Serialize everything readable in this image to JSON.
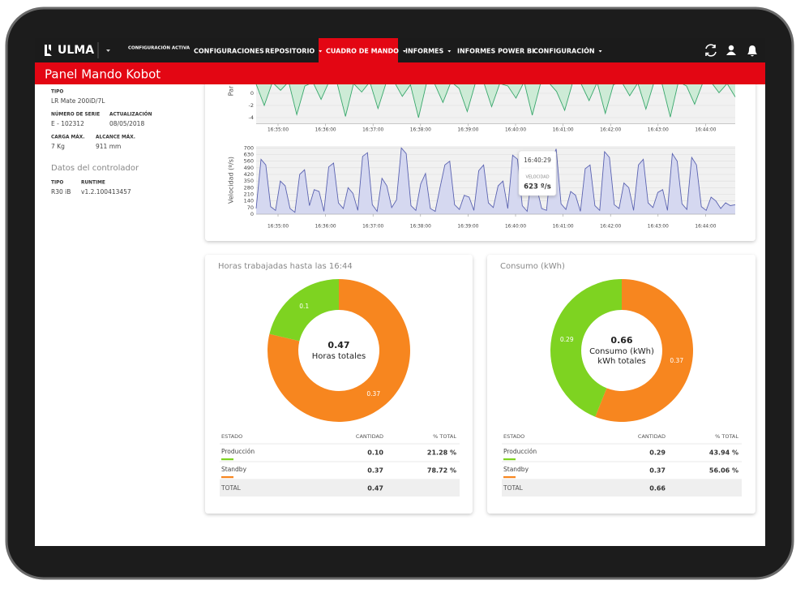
{
  "nav": {
    "logo": "ULMA",
    "active_config_label": "CONFIGURACIÓN ACTIVA",
    "items": [
      "CONFIGURACIONES",
      "REPOSITORIO",
      "CUADRO DE MANDO",
      "INFORMES",
      "INFORMES POWER BI",
      "CONFIGURACIÓN"
    ]
  },
  "header": {
    "title": "Panel Mando Kobot"
  },
  "robot": {
    "fields": [
      {
        "label": "TIPO",
        "value": "LR Mate 200iD/7L"
      },
      {
        "label": "NÚMERO DE SERIE",
        "value": "E - 102312"
      },
      {
        "label": "ACTUALIZACIÓN",
        "value": "08/05/2018"
      },
      {
        "label": "CARGA MÁX.",
        "value": "7 Kg"
      },
      {
        "label": "ALCANCE MÁX.",
        "value": "911 mm"
      }
    ]
  },
  "controller": {
    "title": "Datos del controlador",
    "fields": [
      {
        "label": "TIPO",
        "value": "R30 iB"
      },
      {
        "label": "RUNTIME",
        "value": "v1.2.100413457"
      }
    ]
  },
  "torque_chart": {
    "type": "line",
    "y_label": "Par",
    "ylim": [
      -5,
      3
    ],
    "yticks": [
      -4,
      -2,
      0
    ],
    "x_labels": [
      "16:35:00",
      "16:36:00",
      "16:37:00",
      "16:38:00",
      "16:39:00",
      "16:40:00",
      "16:41:00",
      "16:42:00",
      "16:43:00",
      "16:44:00"
    ],
    "color": "#3aa76d",
    "fill": "#cdebd6",
    "values": [
      1.5,
      -2,
      1.8,
      0.5,
      1.9,
      -3.5,
      1.2,
      1.8,
      -1,
      2,
      1.5,
      -3.8,
      1.6,
      0.2,
      1.9,
      -2.5,
      1.7,
      1.9,
      -0.5,
      1.4,
      -4,
      1.8,
      1.5,
      -1.5,
      1.9,
      0.8,
      -3,
      1.7,
      1.9,
      -2.2,
      1.6,
      1.2,
      -0.8,
      1.9,
      -3.6,
      1.5,
      1.8,
      0.3,
      -2.8,
      1.9,
      1.6,
      -1.2,
      1.8,
      -3.3,
      1.4,
      1.9,
      -0.4,
      1.7,
      -2.6,
      1.8,
      1.5,
      -3.9,
      1.9,
      1.2,
      -1.8,
      1.7,
      1.9,
      0.1,
      1.6,
      -0.6
    ]
  },
  "speed_chart": {
    "type": "line",
    "y_label": "Velocidad (º/s)",
    "ylim": [
      0,
      720
    ],
    "yticks": [
      0,
      70,
      140,
      210,
      280,
      350,
      420,
      490,
      560,
      630,
      700
    ],
    "x_labels": [
      "16:35:00",
      "16:36:00",
      "16:37:00",
      "16:38:00",
      "16:39:00",
      "16:40:00",
      "16:41:00",
      "16:42:00",
      "16:43:00",
      "16:44:00"
    ],
    "color": "#5a62b0",
    "fill": "#d5d8f0",
    "values": [
      60,
      580,
      520,
      80,
      40,
      350,
      300,
      60,
      20,
      420,
      470,
      90,
      260,
      240,
      30,
      500,
      540,
      120,
      60,
      280,
      220,
      40,
      610,
      650,
      100,
      30,
      380,
      300,
      70,
      150,
      700,
      640,
      90,
      40,
      320,
      430,
      60,
      30,
      280,
      520,
      560,
      100,
      50,
      200,
      180,
      40,
      460,
      520,
      120,
      70,
      300,
      350,
      60,
      623,
      580,
      90,
      30,
      420,
      280,
      60,
      40,
      560,
      690,
      110,
      50,
      240,
      200,
      30,
      480,
      520,
      90,
      40,
      660,
      600,
      100,
      60,
      330,
      280,
      40,
      520,
      580,
      120,
      70,
      230,
      260,
      40,
      640,
      560,
      110,
      50,
      600,
      520,
      80,
      40,
      180,
      140,
      60,
      120,
      90,
      100
    ],
    "tooltip": {
      "time": "16:40:29",
      "label": "VELOCIDAD",
      "value": "623 º/s"
    }
  },
  "hours": {
    "type": "pie",
    "title": "Horas trabajadas hasta las 16:44",
    "values": [
      0.1,
      0.37
    ],
    "value_labels": [
      "0.1",
      "0.37"
    ],
    "colors": [
      "#7ed321",
      "#f7861f"
    ],
    "center": {
      "total": "0.47",
      "label": [
        "Horas totales"
      ]
    },
    "table": {
      "headers": [
        "ESTADO",
        "CANTIDAD",
        "% TOTAL"
      ],
      "rows": [
        [
          "Producción",
          "0.10",
          "21.28 %"
        ],
        [
          "Standby",
          "0.37",
          "78.72 %"
        ]
      ],
      "total": [
        "TOTAL",
        "0.47"
      ]
    }
  },
  "consumption": {
    "type": "pie",
    "title": "Consumo (kWh)",
    "values": [
      0.29,
      0.37
    ],
    "value_labels": [
      "0.29",
      "0.37"
    ],
    "colors": [
      "#7ed321",
      "#f7861f"
    ],
    "center": {
      "total": "0.66",
      "label": [
        "Consumo (kWh)",
        "kWh totales"
      ]
    },
    "table": {
      "headers": [
        "ESTADO",
        "CANTIDAD",
        "% TOTAL"
      ],
      "rows": [
        [
          "Producción",
          "0.29",
          "43.94 %"
        ],
        [
          "Standby",
          "0.37",
          "56.06 %"
        ]
      ],
      "total": [
        "TOTAL",
        "0.66"
      ]
    }
  }
}
